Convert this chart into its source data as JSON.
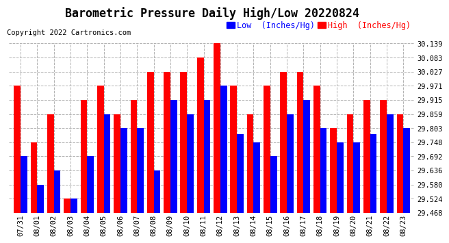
{
  "title": "Barometric Pressure Daily High/Low 20220824",
  "copyright": "Copyright 2022 Cartronics.com",
  "legend_low": "Low  (Inches/Hg)",
  "legend_high": "High  (Inches/Hg)",
  "categories": [
    "07/31",
    "08/01",
    "08/02",
    "08/03",
    "08/04",
    "08/05",
    "08/06",
    "08/07",
    "08/08",
    "08/09",
    "08/10",
    "08/11",
    "08/12",
    "08/13",
    "08/14",
    "08/15",
    "08/16",
    "08/17",
    "08/18",
    "08/19",
    "08/20",
    "08/21",
    "08/22",
    "08/23"
  ],
  "high_values": [
    29.971,
    29.748,
    29.859,
    29.524,
    29.915,
    29.971,
    29.859,
    29.915,
    30.027,
    30.027,
    30.027,
    30.083,
    30.139,
    29.971,
    29.859,
    29.971,
    30.027,
    30.027,
    29.971,
    29.803,
    29.859,
    29.915,
    29.915,
    29.859
  ],
  "low_values": [
    29.692,
    29.58,
    29.636,
    29.524,
    29.692,
    29.859,
    29.803,
    29.803,
    29.636,
    29.915,
    29.859,
    29.915,
    29.971,
    29.78,
    29.748,
    29.692,
    29.859,
    29.915,
    29.803,
    29.748,
    29.748,
    29.78,
    29.859,
    29.803
  ],
  "ylim_min": 29.468,
  "ylim_max": 30.139,
  "yticks": [
    29.468,
    29.524,
    29.58,
    29.636,
    29.692,
    29.748,
    29.803,
    29.859,
    29.915,
    29.971,
    30.027,
    30.083,
    30.139
  ],
  "bar_color_high": "#FF0000",
  "bar_color_low": "#0000FF",
  "background_color": "#FFFFFF",
  "grid_color": "#AAAAAA",
  "title_fontsize": 12,
  "copyright_fontsize": 7.5,
  "legend_fontsize": 8.5,
  "tick_fontsize": 7.5
}
